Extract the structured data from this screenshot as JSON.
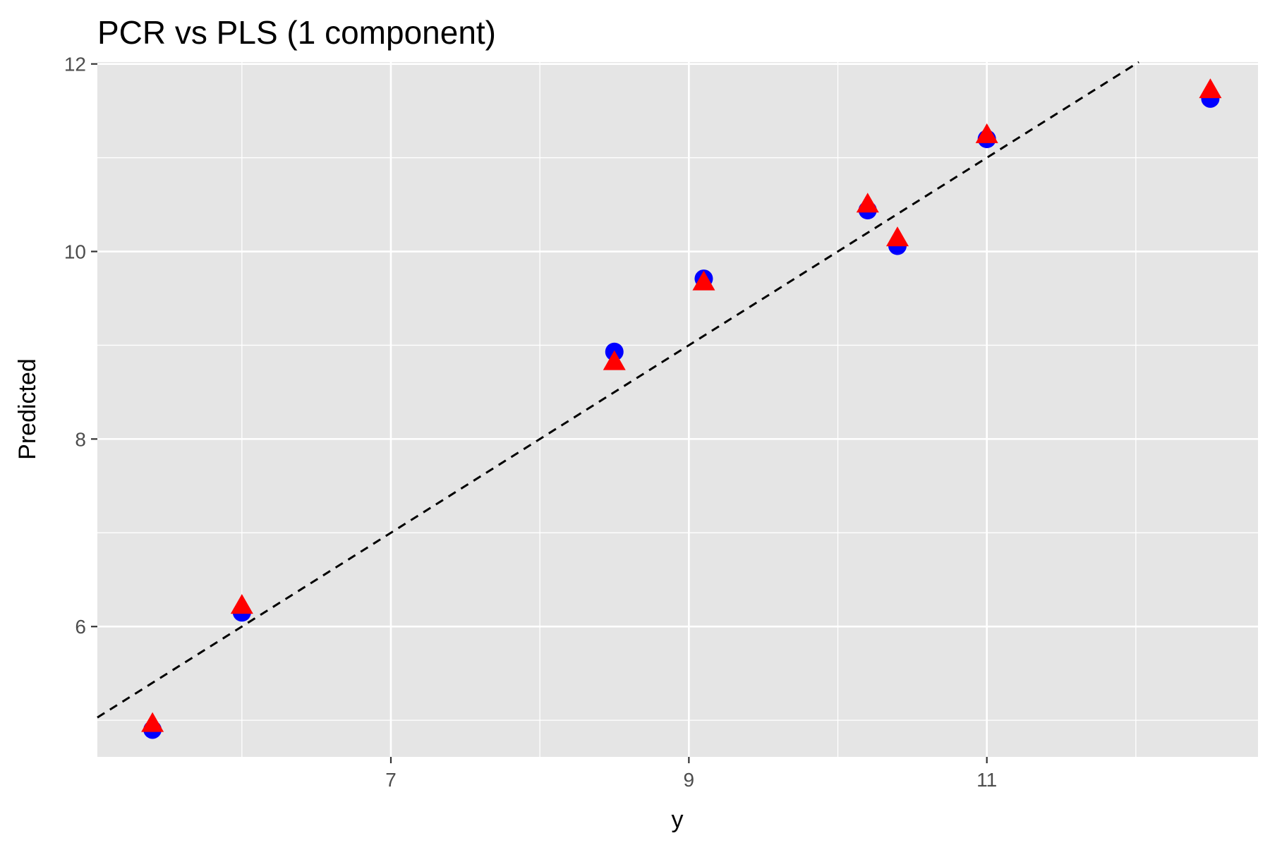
{
  "chart_data": {
    "type": "scatter",
    "title": "PCR vs PLS (1 component)",
    "xlabel": "y",
    "ylabel": "Predicted",
    "xlim": [
      5.03,
      12.82
    ],
    "ylim": [
      4.61,
      12.02
    ],
    "x_ticks": [
      7,
      9,
      11
    ],
    "x_tick_labels": [
      "7",
      "9",
      "11"
    ],
    "x_minor_ticks": [
      6,
      8,
      10,
      12
    ],
    "y_ticks": [
      6,
      8,
      10,
      12
    ],
    "y_tick_labels": [
      "6",
      "8",
      "10",
      "12"
    ],
    "y_minor_ticks": [
      5,
      7,
      9,
      11
    ],
    "grid": true,
    "legend": "none",
    "reference_line": {
      "type": "identity",
      "slope": 1,
      "intercept": 0,
      "style": "dashed",
      "color": "#000000"
    },
    "series": [
      {
        "marker": "circle",
        "color": "#0000ff",
        "x": [
          5.4,
          6.0,
          8.5,
          9.1,
          10.2,
          10.4,
          11.0,
          12.5
        ],
        "y": [
          4.9,
          6.15,
          8.93,
          9.71,
          10.44,
          10.06,
          11.2,
          11.63
        ]
      },
      {
        "marker": "triangle",
        "color": "#ff0000",
        "x": [
          5.4,
          6.0,
          8.5,
          9.1,
          10.2,
          10.4,
          11.0,
          12.5
        ],
        "y": [
          4.96,
          6.22,
          8.82,
          9.67,
          10.5,
          10.14,
          11.24,
          11.72
        ]
      }
    ]
  }
}
